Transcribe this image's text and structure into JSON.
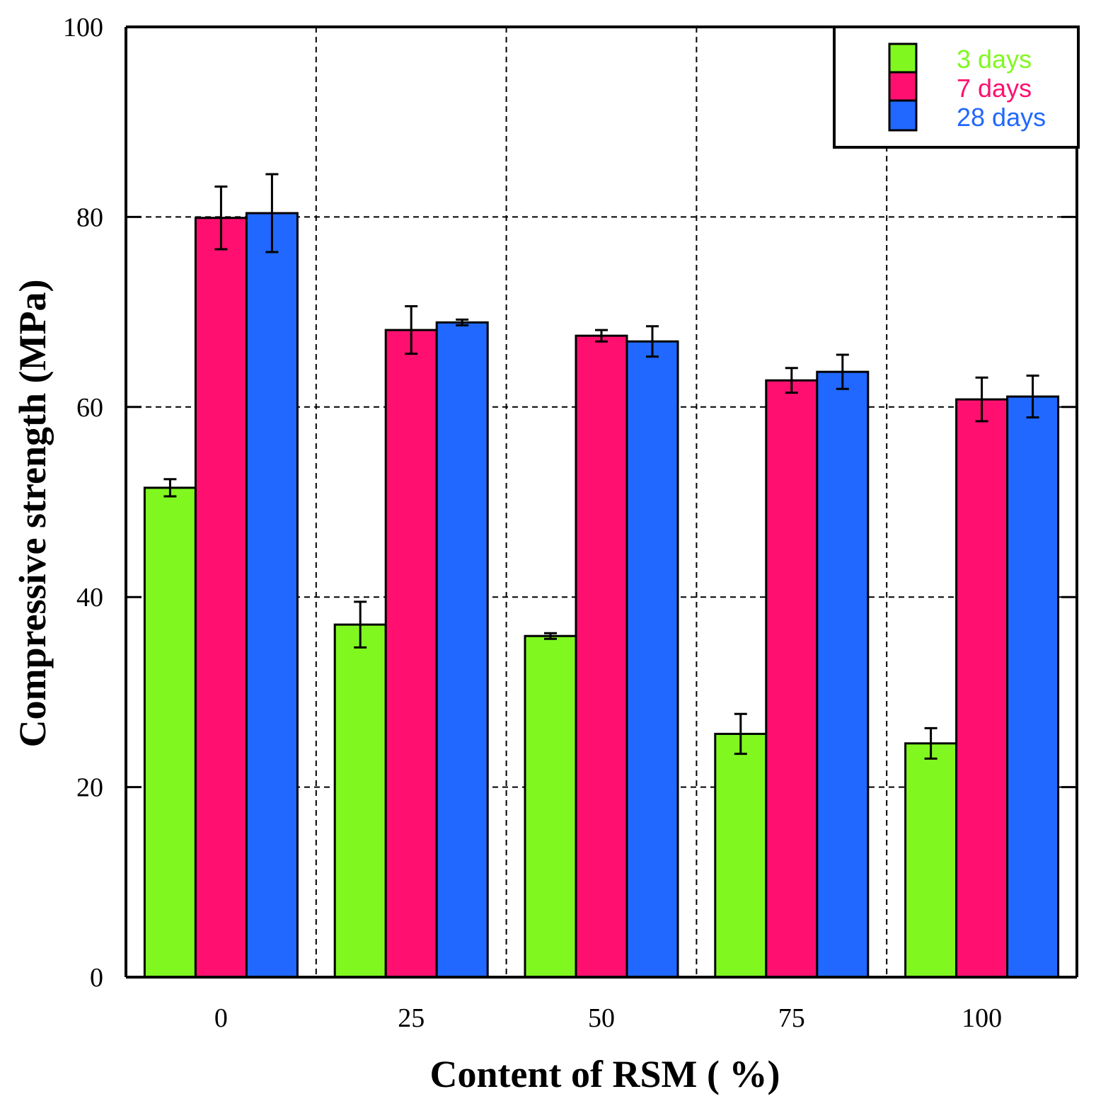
{
  "chart_data": {
    "type": "bar",
    "title": "",
    "xlabel": "Content of RSM ( %)",
    "ylabel": "Compressive strength (MPa)",
    "categories": [
      "0",
      "25",
      "50",
      "75",
      "100"
    ],
    "ylim": [
      0,
      100
    ],
    "yticks": [
      "0",
      "20",
      "40",
      "60",
      "80",
      "100"
    ],
    "grid": true,
    "legend_position": "top-right",
    "series": [
      {
        "name": "3 days",
        "color": "#80f820",
        "values": [
          51.5,
          37.1,
          35.9,
          25.6,
          24.6
        ],
        "errors": [
          0.9,
          2.4,
          0.3,
          2.1,
          1.6
        ]
      },
      {
        "name": "7 days",
        "color": "#ff1070",
        "values": [
          79.9,
          68.1,
          67.5,
          62.8,
          60.8
        ],
        "errors": [
          3.3,
          2.5,
          0.6,
          1.3,
          2.3
        ]
      },
      {
        "name": "28 days",
        "color": "#2068ff",
        "values": [
          80.4,
          68.9,
          66.9,
          63.7,
          61.1
        ],
        "errors": [
          4.1,
          0.3,
          1.6,
          1.8,
          2.2
        ]
      }
    ]
  }
}
